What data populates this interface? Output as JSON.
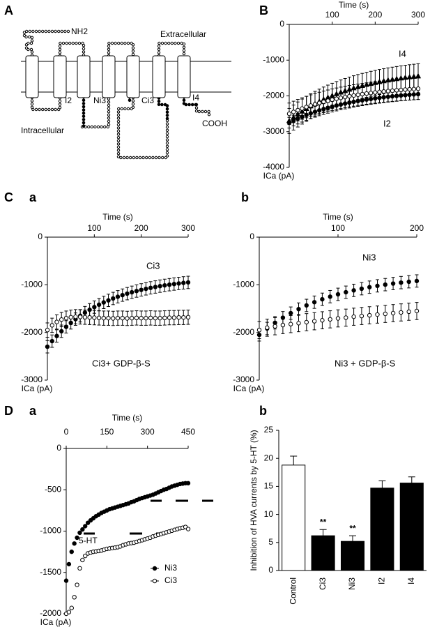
{
  "diagram": {
    "panel": "A",
    "labels": {
      "nh2": "NH2",
      "extracellular": "Extracellular",
      "intracellular": "Intracellular",
      "i2": "I2",
      "ni3": "Ni3",
      "ci3": "Ci3",
      "i4": "I4",
      "cooh": "COOH"
    }
  },
  "chart_data": [
    {
      "type": "scatter",
      "panel": "B",
      "xlabel": "Time (s)",
      "ylabel": "ICa (pA)",
      "x": [
        0,
        10,
        20,
        30,
        40,
        50,
        60,
        70,
        80,
        90,
        100,
        110,
        120,
        130,
        140,
        150,
        160,
        170,
        180,
        190,
        200,
        210,
        220,
        230,
        240,
        250,
        260,
        270,
        280,
        290,
        300
      ],
      "xlim": [
        0,
        300
      ],
      "xticks": [
        100,
        200,
        300
      ],
      "ylim": [
        -4000,
        0
      ],
      "yticks": [
        0,
        -1000,
        -2000,
        -3000,
        -4000
      ],
      "legend": false,
      "series": [
        {
          "name": "I4",
          "color": "#000",
          "marker": "triangle",
          "filled": true,
          "error": 350,
          "values": [
            -2700,
            -2607,
            -2520,
            -2438,
            -2362,
            -2290,
            -2223,
            -2161,
            -2102,
            -2048,
            -1997,
            -1949,
            -1904,
            -1862,
            -1823,
            -1786,
            -1752,
            -1720,
            -1690,
            -1662,
            -1636,
            -1611,
            -1588,
            -1566,
            -1546,
            -1528,
            -1510,
            -1493,
            -1478,
            -1464,
            -1450
          ]
        },
        {
          "color": "#000",
          "marker": "circle",
          "filled": false,
          "error": 300,
          "values": [
            -2500,
            -2448,
            -2399,
            -2353,
            -2311,
            -2270,
            -2233,
            -2198,
            -2165,
            -2135,
            -2106,
            -2079,
            -2054,
            -2031,
            -2009,
            -1988,
            -1969,
            -1951,
            -1934,
            -1919,
            -1904,
            -1890,
            -1877,
            -1865,
            -1854,
            -1843,
            -1834,
            -1824,
            -1816,
            -1808,
            -1800
          ]
        },
        {
          "name": "I2",
          "color": "#000",
          "marker": "circle",
          "filled": true,
          "error": 150,
          "values": [
            -2750,
            -2690,
            -2635,
            -2582,
            -2533,
            -2488,
            -2445,
            -2405,
            -2368,
            -2333,
            -2300,
            -2269,
            -2240,
            -2214,
            -2189,
            -2165,
            -2143,
            -2123,
            -2103,
            -2086,
            -2069,
            -2053,
            -2038,
            -2024,
            -2012,
            -2000,
            -1988,
            -1978,
            -1968,
            -1959,
            -1950
          ]
        }
      ]
    },
    {
      "type": "scatter",
      "figure": "C",
      "panel": "a",
      "xlabel": "Time (s)",
      "ylabel": "ICa (pA)",
      "x": [
        0,
        10,
        20,
        30,
        40,
        50,
        60,
        70,
        80,
        90,
        100,
        110,
        120,
        130,
        140,
        150,
        160,
        170,
        180,
        190,
        200,
        210,
        220,
        230,
        240,
        250,
        260,
        270,
        280,
        290,
        300
      ],
      "xlim": [
        0,
        300
      ],
      "xticks": [
        100,
        200,
        300
      ],
      "ylim": [
        -3000,
        0
      ],
      "yticks": [
        0,
        -1000,
        -2000,
        -3000
      ],
      "legend": false,
      "series": [
        {
          "name": "Ci3",
          "color": "#000",
          "marker": "circle",
          "filled": true,
          "error": 130,
          "values": [
            -2300,
            -2182,
            -2074,
            -1975,
            -1883,
            -1799,
            -1721,
            -1650,
            -1584,
            -1524,
            -1468,
            -1417,
            -1370,
            -1327,
            -1287,
            -1251,
            -1217,
            -1186,
            -1157,
            -1131,
            -1107,
            -1085,
            -1064,
            -1046,
            -1028,
            -1012,
            -998,
            -984,
            -972,
            -960,
            -950
          ]
        },
        {
          "name": "Ci3+ GDP-β-S",
          "color": "#000",
          "marker": "circle",
          "filled": false,
          "error": 150,
          "values": [
            -1950,
            -1850,
            -1780,
            -1730,
            -1700,
            -1680,
            -1670,
            -1675,
            -1680,
            -1685,
            -1690,
            -1695,
            -1700,
            -1700,
            -1705,
            -1700,
            -1700,
            -1705,
            -1700,
            -1695,
            -1700,
            -1700,
            -1695,
            -1700,
            -1700,
            -1695,
            -1690,
            -1690,
            -1685,
            -1685,
            -1680
          ]
        }
      ]
    },
    {
      "type": "scatter",
      "panel": "b",
      "xlabel": "Time (s)",
      "ylabel": "ICa (pA)",
      "x": [
        0,
        10,
        20,
        30,
        40,
        50,
        60,
        70,
        80,
        90,
        100,
        110,
        120,
        130,
        140,
        150,
        160,
        170,
        180,
        190,
        200
      ],
      "xlim": [
        0,
        200
      ],
      "xticks": [
        100,
        200
      ],
      "ylim": [
        -3000,
        0
      ],
      "yticks": [
        0,
        -1000,
        -2000,
        -3000
      ],
      "legend": false,
      "series": [
        {
          "name": "Ni3",
          "color": "#000",
          "marker": "circle",
          "filled": true,
          "error": 130,
          "values": [
            -2050,
            -1917,
            -1797,
            -1691,
            -1595,
            -1510,
            -1433,
            -1365,
            -1304,
            -1249,
            -1200,
            -1156,
            -1117,
            -1082,
            -1050,
            -1022,
            -997,
            -974,
            -954,
            -936,
            -920
          ]
        },
        {
          "name": "Ni3 + GDP-β-S",
          "color": "#000",
          "marker": "circle",
          "filled": false,
          "error": 180,
          "values": [
            -1950,
            -1900,
            -1870,
            -1845,
            -1825,
            -1805,
            -1785,
            -1765,
            -1745,
            -1725,
            -1705,
            -1690,
            -1670,
            -1655,
            -1640,
            -1625,
            -1610,
            -1595,
            -1580,
            -1565,
            -1550
          ]
        }
      ]
    },
    {
      "type": "scatter",
      "figure": "D",
      "panel": "a",
      "xlabel": "Time (s)",
      "ylabel": "ICa (pA)",
      "x": [
        0,
        10,
        20,
        30,
        40,
        50,
        60,
        70,
        80,
        90,
        100,
        110,
        120,
        130,
        140,
        150,
        160,
        170,
        180,
        190,
        200,
        210,
        220,
        230,
        240,
        250,
        260,
        270,
        280,
        290,
        300,
        310,
        320,
        330,
        340,
        350,
        360,
        370,
        380,
        390,
        400,
        410,
        420,
        430,
        440,
        450
      ],
      "xlim": [
        0,
        450
      ],
      "xticks": [
        0,
        150,
        300,
        450
      ],
      "ylim": [
        -2000,
        0
      ],
      "yticks": [
        0,
        -500,
        -1000,
        -1500,
        -2000
      ],
      "legend": true,
      "annotations": [
        "5-HT"
      ],
      "series": [
        {
          "name": "Ni3",
          "color": "#000",
          "marker": "circle",
          "filled": true,
          "values": [
            -1600,
            -1400,
            -1250,
            -1150,
            -1080,
            -1020,
            -980,
            -940,
            -900,
            -870,
            -845,
            -820,
            -800,
            -780,
            -765,
            -750,
            -735,
            -725,
            -715,
            -705,
            -695,
            -685,
            -675,
            -665,
            -650,
            -640,
            -625,
            -610,
            -600,
            -590,
            -580,
            -570,
            -560,
            -545,
            -530,
            -515,
            -500,
            -490,
            -475,
            -460,
            -450,
            -440,
            -430,
            -425,
            -420,
            -420
          ]
        },
        {
          "name": "Ci3",
          "color": "#000",
          "marker": "circle",
          "filled": false,
          "values": [
            -2000,
            -1980,
            -1930,
            -1800,
            -1650,
            -1450,
            -1350,
            -1300,
            -1270,
            -1260,
            -1250,
            -1245,
            -1240,
            -1235,
            -1225,
            -1215,
            -1210,
            -1205,
            -1200,
            -1195,
            -1185,
            -1170,
            -1160,
            -1150,
            -1145,
            -1140,
            -1130,
            -1120,
            -1110,
            -1100,
            -1090,
            -1080,
            -1065,
            -1055,
            -1045,
            -1035,
            -1025,
            -1015,
            -1005,
            -995,
            -985,
            -975,
            -965,
            -960,
            -950,
            -975
          ]
        }
      ]
    },
    {
      "type": "bar",
      "panel": "b",
      "ylabel": "Inhibition of HVA currents by 5-HT (%)",
      "categories": [
        "Control",
        "Ci3",
        "Ni3",
        "I2",
        "I4"
      ],
      "values": [
        18.8,
        6.2,
        5.2,
        14.7,
        15.6
      ],
      "errors": [
        1.6,
        1.1,
        1.0,
        1.3,
        1.1
      ],
      "colors": [
        "#ffffff",
        "#000000",
        "#000000",
        "#000000",
        "#000000"
      ],
      "ylim": [
        0,
        25
      ],
      "yticks": [
        0,
        5,
        10,
        15,
        20,
        25
      ],
      "annotations": [
        "**",
        "**"
      ]
    }
  ]
}
